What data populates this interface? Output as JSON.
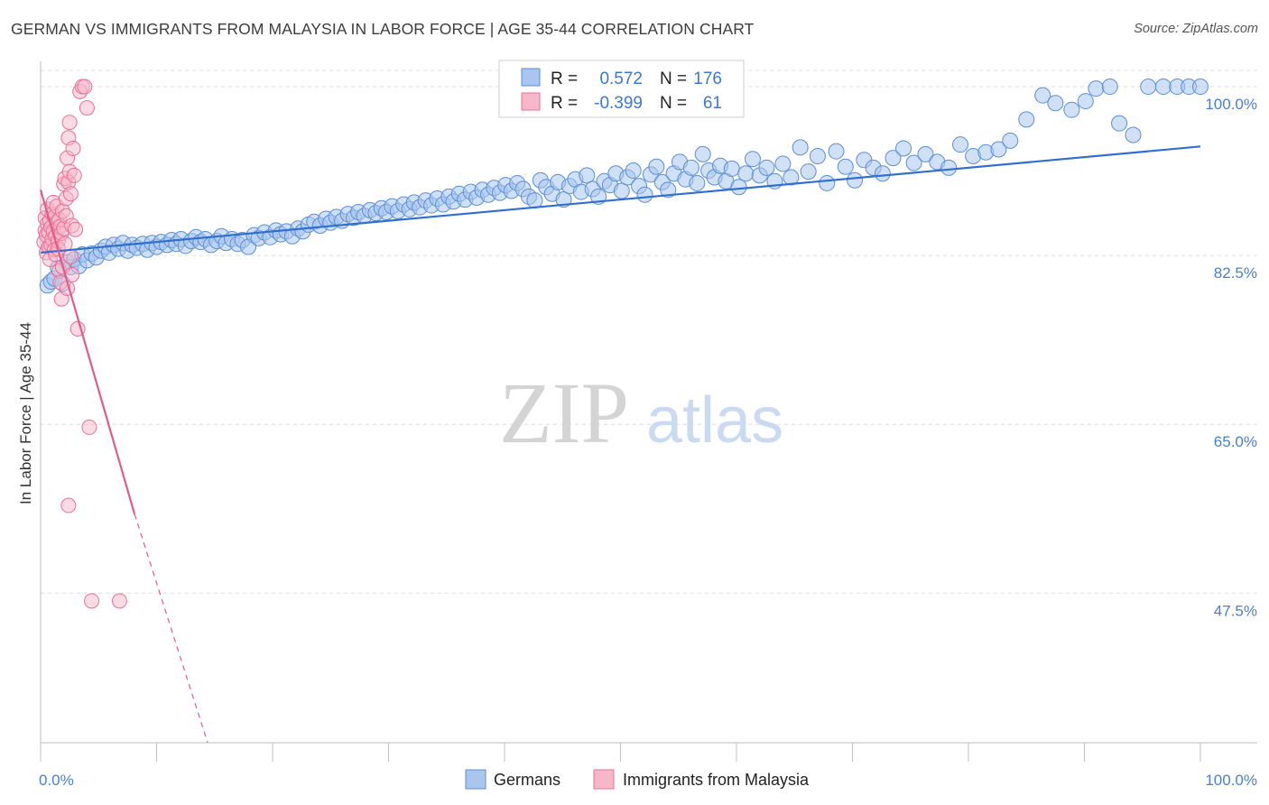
{
  "title": "GERMAN VS IMMIGRANTS FROM MALAYSIA IN LABOR FORCE | AGE 35-44 CORRELATION CHART",
  "source": "Source: ZipAtlas.com",
  "watermark": {
    "zip": "ZIP",
    "atlas": "atlas"
  },
  "colors": {
    "german_fill": "#a9c6ee",
    "german_stroke": "#5b8fd6",
    "german_line": "#2f6fd0",
    "malaysia_fill": "#f6b7c9",
    "malaysia_stroke": "#ea6f97",
    "malaysia_line": "#e35b8b",
    "tick": "#4a7fd0",
    "grid": "#dddddd"
  },
  "stats_box": {
    "rows": [
      {
        "r_label": "R =",
        "r_value": "0.572",
        "n_label": "N =",
        "n_value": "176",
        "series": "german"
      },
      {
        "r_label": "R =",
        "r_value": "-0.399",
        "n_label": "N =",
        "n_value": "61",
        "series": "malaysia"
      }
    ]
  },
  "chart_data": {
    "type": "scatter",
    "title": "GERMAN VS IMMIGRANTS FROM MALAYSIA IN LABOR FORCE | AGE 35-44 CORRELATION CHART",
    "ylabel": "In Labor Force | Age 35-44",
    "xlabel": "",
    "xlim": [
      0,
      100
    ],
    "ylim": [
      32,
      101.5
    ],
    "grid": true,
    "y_ticks": [
      {
        "value": 100.0,
        "label": "100.0%"
      },
      {
        "value": 82.5,
        "label": "82.5%"
      },
      {
        "value": 65.0,
        "label": "65.0%"
      },
      {
        "value": 47.5,
        "label": "47.5%"
      }
    ],
    "x_tick_labels": [
      {
        "value": 0,
        "label": "0.0%"
      },
      {
        "value": 100,
        "label": "100.0%"
      }
    ],
    "x_minor_ticks": [
      0,
      10,
      20,
      30,
      40,
      50,
      60,
      70,
      80,
      90,
      100
    ],
    "legend": {
      "placement": "bottom",
      "entries": [
        "Germans",
        "Immigrants from Malaysia"
      ]
    },
    "series": [
      {
        "name": "Germans",
        "key": "german",
        "trend": {
          "x": [
            0,
            100
          ],
          "y": [
            82.8,
            93.8
          ]
        },
        "points": [
          [
            0.6,
            79.4
          ],
          [
            0.9,
            79.8
          ],
          [
            1.2,
            80.1
          ],
          [
            1.5,
            81.2
          ],
          [
            1.9,
            79.6
          ],
          [
            2.3,
            81.8
          ],
          [
            2.6,
            81.3
          ],
          [
            2.9,
            82.1
          ],
          [
            3.3,
            81.4
          ],
          [
            3.6,
            82.6
          ],
          [
            4.0,
            82.0
          ],
          [
            4.4,
            82.7
          ],
          [
            4.8,
            82.3
          ],
          [
            5.2,
            83.0
          ],
          [
            5.6,
            83.4
          ],
          [
            5.9,
            82.8
          ],
          [
            6.3,
            83.6
          ],
          [
            6.7,
            83.2
          ],
          [
            7.1,
            83.8
          ],
          [
            7.5,
            83.0
          ],
          [
            7.9,
            83.6
          ],
          [
            8.3,
            83.3
          ],
          [
            8.8,
            83.7
          ],
          [
            9.2,
            83.1
          ],
          [
            9.6,
            83.8
          ],
          [
            10.0,
            83.4
          ],
          [
            10.4,
            83.9
          ],
          [
            10.9,
            83.6
          ],
          [
            11.3,
            84.1
          ],
          [
            11.7,
            83.7
          ],
          [
            12.1,
            84.2
          ],
          [
            12.5,
            83.5
          ],
          [
            13.0,
            84.0
          ],
          [
            13.4,
            84.4
          ],
          [
            13.8,
            83.9
          ],
          [
            14.2,
            84.2
          ],
          [
            14.7,
            83.6
          ],
          [
            15.2,
            84.0
          ],
          [
            15.6,
            84.5
          ],
          [
            16.0,
            83.8
          ],
          [
            16.5,
            84.2
          ],
          [
            17.0,
            83.7
          ],
          [
            17.4,
            84.1
          ],
          [
            17.9,
            83.4
          ],
          [
            18.4,
            84.6
          ],
          [
            18.8,
            84.3
          ],
          [
            19.3,
            84.9
          ],
          [
            19.8,
            84.4
          ],
          [
            20.3,
            85.1
          ],
          [
            20.7,
            84.7
          ],
          [
            21.2,
            85.0
          ],
          [
            21.7,
            84.5
          ],
          [
            22.2,
            85.3
          ],
          [
            22.6,
            85.0
          ],
          [
            23.1,
            85.7
          ],
          [
            23.6,
            86.0
          ],
          [
            24.1,
            85.6
          ],
          [
            24.6,
            86.3
          ],
          [
            25.0,
            85.9
          ],
          [
            25.5,
            86.5
          ],
          [
            26.0,
            86.1
          ],
          [
            26.5,
            86.8
          ],
          [
            27.0,
            86.4
          ],
          [
            27.4,
            87.0
          ],
          [
            27.9,
            86.6
          ],
          [
            28.4,
            87.2
          ],
          [
            28.9,
            86.9
          ],
          [
            29.4,
            87.4
          ],
          [
            29.8,
            87.0
          ],
          [
            30.3,
            87.6
          ],
          [
            30.8,
            87.1
          ],
          [
            31.3,
            87.8
          ],
          [
            31.8,
            87.3
          ],
          [
            32.2,
            88.0
          ],
          [
            32.7,
            87.5
          ],
          [
            33.2,
            88.2
          ],
          [
            33.7,
            87.7
          ],
          [
            34.2,
            88.4
          ],
          [
            34.7,
            87.8
          ],
          [
            35.2,
            88.6
          ],
          [
            35.6,
            88.1
          ],
          [
            36.1,
            88.9
          ],
          [
            36.6,
            88.3
          ],
          [
            37.1,
            89.1
          ],
          [
            37.6,
            88.5
          ],
          [
            38.1,
            89.3
          ],
          [
            38.6,
            88.8
          ],
          [
            39.1,
            89.5
          ],
          [
            39.6,
            89.0
          ],
          [
            40.1,
            89.8
          ],
          [
            40.6,
            89.2
          ],
          [
            41.1,
            90.0
          ],
          [
            41.6,
            89.4
          ],
          [
            42.1,
            88.6
          ],
          [
            42.6,
            88.2
          ],
          [
            43.1,
            90.3
          ],
          [
            43.6,
            89.6
          ],
          [
            44.1,
            88.9
          ],
          [
            44.6,
            90.1
          ],
          [
            45.1,
            88.3
          ],
          [
            45.6,
            89.7
          ],
          [
            46.1,
            90.4
          ],
          [
            46.6,
            89.1
          ],
          [
            47.1,
            90.8
          ],
          [
            47.6,
            89.4
          ],
          [
            48.1,
            88.6
          ],
          [
            48.6,
            90.2
          ],
          [
            49.1,
            89.8
          ],
          [
            49.6,
            91.0
          ],
          [
            50.1,
            89.2
          ],
          [
            50.6,
            90.6
          ],
          [
            51.1,
            91.3
          ],
          [
            51.6,
            89.7
          ],
          [
            52.1,
            88.8
          ],
          [
            52.6,
            90.9
          ],
          [
            53.1,
            91.7
          ],
          [
            53.6,
            90.1
          ],
          [
            54.1,
            89.3
          ],
          [
            54.6,
            91.0
          ],
          [
            55.1,
            92.2
          ],
          [
            55.6,
            90.4
          ],
          [
            56.1,
            91.6
          ],
          [
            56.6,
            90.0
          ],
          [
            57.1,
            93.0
          ],
          [
            57.6,
            91.3
          ],
          [
            58.1,
            90.6
          ],
          [
            58.6,
            91.8
          ],
          [
            59.1,
            90.2
          ],
          [
            59.6,
            91.5
          ],
          [
            60.2,
            89.6
          ],
          [
            60.8,
            91.0
          ],
          [
            61.4,
            92.5
          ],
          [
            62.0,
            90.8
          ],
          [
            62.6,
            91.6
          ],
          [
            63.3,
            90.2
          ],
          [
            64.0,
            92.0
          ],
          [
            64.7,
            90.6
          ],
          [
            65.5,
            93.7
          ],
          [
            66.2,
            91.2
          ],
          [
            67.0,
            92.8
          ],
          [
            67.8,
            90.0
          ],
          [
            68.6,
            93.3
          ],
          [
            69.4,
            91.7
          ],
          [
            70.2,
            90.3
          ],
          [
            71.0,
            92.4
          ],
          [
            71.8,
            91.6
          ],
          [
            72.6,
            91.0
          ],
          [
            73.5,
            92.6
          ],
          [
            74.4,
            93.6
          ],
          [
            75.3,
            92.1
          ],
          [
            76.3,
            93.0
          ],
          [
            77.3,
            92.2
          ],
          [
            78.3,
            91.6
          ],
          [
            79.3,
            94.0
          ],
          [
            80.4,
            92.8
          ],
          [
            81.5,
            93.2
          ],
          [
            82.6,
            93.5
          ],
          [
            83.6,
            94.4
          ],
          [
            85.0,
            96.6
          ],
          [
            86.4,
            99.1
          ],
          [
            87.5,
            98.3
          ],
          [
            88.9,
            97.6
          ],
          [
            90.1,
            98.5
          ],
          [
            91.0,
            99.8
          ],
          [
            92.2,
            100.0
          ],
          [
            93.0,
            96.2
          ],
          [
            94.2,
            95.0
          ],
          [
            95.5,
            100.0
          ],
          [
            96.8,
            100.0
          ],
          [
            98.0,
            100.0
          ],
          [
            99.0,
            100.0
          ],
          [
            100.0,
            100.0
          ]
        ]
      },
      {
        "name": "Immigrants from Malaysia",
        "key": "malaysia",
        "trend_solid": {
          "x": [
            0,
            8.1
          ],
          "y": [
            89.3,
            55.7
          ]
        },
        "trend_dashed": {
          "x": [
            8.1,
            14.4
          ],
          "y": [
            55.7,
            32
          ]
        },
        "points": [
          [
            0.3,
            83.9
          ],
          [
            0.4,
            85.1
          ],
          [
            0.4,
            86.4
          ],
          [
            0.5,
            84.6
          ],
          [
            0.5,
            82.8
          ],
          [
            0.6,
            87.3
          ],
          [
            0.6,
            85.8
          ],
          [
            0.7,
            83.4
          ],
          [
            0.7,
            84.9
          ],
          [
            0.8,
            86.1
          ],
          [
            0.8,
            82.1
          ],
          [
            0.9,
            85.4
          ],
          [
            0.9,
            83.6
          ],
          [
            1.0,
            86.8
          ],
          [
            1.0,
            84.2
          ],
          [
            1.1,
            88.0
          ],
          [
            1.1,
            85.0
          ],
          [
            1.2,
            83.1
          ],
          [
            1.2,
            86.5
          ],
          [
            1.3,
            84.5
          ],
          [
            1.3,
            82.6
          ],
          [
            1.4,
            85.9
          ],
          [
            1.4,
            87.6
          ],
          [
            1.5,
            84.0
          ],
          [
            1.5,
            83.2
          ],
          [
            1.6,
            86.2
          ],
          [
            1.6,
            80.9
          ],
          [
            1.7,
            85.5
          ],
          [
            1.7,
            79.7
          ],
          [
            1.8,
            84.8
          ],
          [
            1.8,
            78.0
          ],
          [
            1.9,
            87.1
          ],
          [
            1.9,
            81.3
          ],
          [
            2.0,
            85.3
          ],
          [
            2.0,
            89.9
          ],
          [
            2.1,
            83.7
          ],
          [
            2.1,
            90.5
          ],
          [
            2.2,
            86.6
          ],
          [
            2.2,
            88.4
          ],
          [
            2.3,
            79.1
          ],
          [
            2.3,
            92.6
          ],
          [
            2.4,
            90.1
          ],
          [
            2.4,
            94.7
          ],
          [
            2.5,
            96.3
          ],
          [
            2.5,
            91.2
          ],
          [
            2.6,
            82.4
          ],
          [
            2.6,
            88.9
          ],
          [
            2.7,
            85.6
          ],
          [
            2.7,
            80.5
          ],
          [
            2.8,
            93.6
          ],
          [
            2.9,
            90.8
          ],
          [
            3.0,
            85.2
          ],
          [
            3.2,
            74.9
          ],
          [
            3.4,
            99.5
          ],
          [
            3.6,
            100.0
          ],
          [
            3.8,
            100.0
          ],
          [
            4.0,
            97.8
          ],
          [
            4.2,
            64.7
          ],
          [
            4.4,
            46.7
          ],
          [
            6.8,
            46.7
          ],
          [
            2.4,
            56.6
          ]
        ]
      }
    ]
  }
}
